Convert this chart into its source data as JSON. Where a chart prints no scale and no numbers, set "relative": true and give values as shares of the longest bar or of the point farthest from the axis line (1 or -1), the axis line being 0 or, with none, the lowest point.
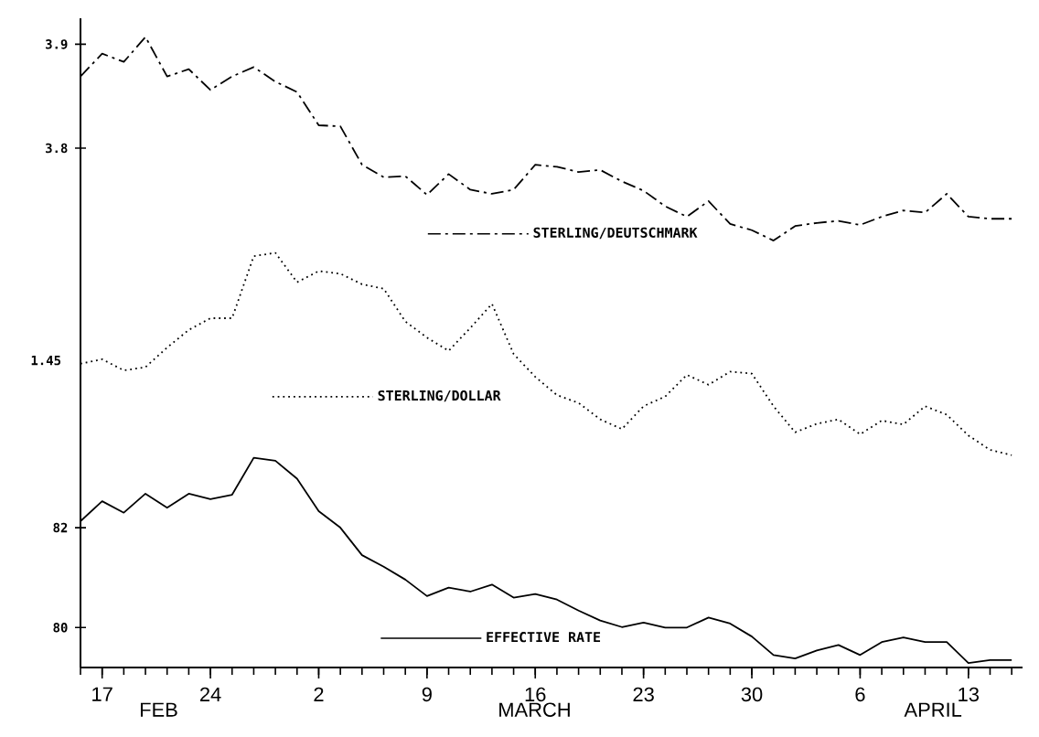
{
  "chart_data": [
    {
      "type": "line",
      "categories": [
        null,
        "17",
        null,
        null,
        null,
        null,
        "24",
        null,
        null,
        null,
        null,
        "2",
        null,
        null,
        null,
        null,
        "9",
        null,
        null,
        null,
        null,
        "16",
        null,
        null,
        null,
        null,
        "23",
        null,
        null,
        null,
        null,
        "30",
        null,
        null,
        null,
        null,
        "6",
        null,
        null,
        null,
        null,
        "13",
        null,
        null
      ],
      "ylim": [
        3.3,
        3.925
      ],
      "yticks": [
        3.8,
        3.9
      ],
      "tick_labels": "y",
      "legend": "center",
      "line_style": "dashdot",
      "series": [
        {
          "name": "STERLING/DEUTSCHMARK",
          "color": "#000000",
          "values": [
            3.869,
            3.891,
            3.883,
            3.907,
            3.869,
            3.876,
            3.856,
            3.869,
            3.878,
            3.864,
            3.854,
            3.822,
            3.821,
            3.784,
            3.772,
            3.773,
            3.755,
            3.775,
            3.76,
            3.756,
            3.76,
            3.784,
            3.782,
            3.777,
            3.779,
            3.768,
            3.759,
            3.744,
            3.734,
            3.749,
            3.727,
            3.721,
            3.711,
            3.725,
            3.728,
            3.73,
            3.726,
            3.734,
            3.74,
            3.738,
            3.756,
            3.734,
            3.732,
            3.732
          ]
        }
      ]
    },
    {
      "type": "line",
      "categories": [
        null,
        "17",
        null,
        null,
        null,
        null,
        "24",
        null,
        null,
        null,
        null,
        "2",
        null,
        null,
        null,
        null,
        "9",
        null,
        null,
        null,
        null,
        "16",
        null,
        null,
        null,
        null,
        "23",
        null,
        null,
        null,
        null,
        "30",
        null,
        null,
        null,
        null,
        "6",
        null,
        null,
        null,
        null,
        "13",
        null,
        null
      ],
      "relative": true,
      "tick_labels": false,
      "legend": "center",
      "line_style": "dotted",
      "annotations": [
        "1.45"
      ],
      "series": [
        {
          "name": "STERLING/DOLLAR",
          "color": "#000000",
          "values": [
            0.452,
            0.474,
            0.419,
            0.435,
            0.532,
            0.619,
            0.677,
            0.677,
            0.984,
            1,
            0.855,
            0.91,
            0.897,
            0.845,
            0.823,
            0.661,
            0.581,
            0.516,
            0.629,
            0.748,
            0.5,
            0.387,
            0.297,
            0.258,
            0.177,
            0.129,
            0.242,
            0.29,
            0.397,
            0.348,
            0.413,
            0.403,
            0.242,
            0.113,
            0.155,
            0.177,
            0.103,
            0.171,
            0.152,
            0.242,
            0.2,
            0.097,
            0.026,
            0
          ]
        }
      ]
    },
    {
      "type": "line",
      "categories": [
        null,
        "17",
        null,
        null,
        null,
        null,
        "24",
        null,
        null,
        null,
        null,
        "2",
        null,
        null,
        null,
        null,
        "9",
        null,
        null,
        null,
        null,
        "16",
        null,
        null,
        null,
        null,
        "23",
        null,
        null,
        null,
        null,
        "30",
        null,
        null,
        null,
        null,
        "6",
        null,
        null,
        null,
        null,
        "13",
        null,
        null
      ],
      "ylim": [
        79.2,
        92.2
      ],
      "yticks": [
        80,
        82
      ],
      "legend": "center",
      "line_style": "solid",
      "annotations": [
        "FEB",
        "MARCH",
        "APRIL"
      ],
      "series": [
        {
          "name": "EFFECTIVE RATE",
          "color": "#000000",
          "values": [
            82.13,
            82.53,
            82.3,
            82.68,
            82.4,
            82.68,
            82.57,
            82.66,
            83.4,
            83.34,
            82.98,
            82.33,
            82.0,
            81.45,
            81.22,
            80.96,
            80.63,
            80.8,
            80.72,
            80.86,
            80.6,
            80.67,
            80.56,
            80.34,
            80.14,
            80.01,
            80.1,
            80.0,
            80.0,
            80.2,
            80.08,
            79.82,
            79.45,
            79.38,
            79.54,
            79.65,
            79.45,
            79.71,
            79.8,
            79.71,
            79.71,
            79.29,
            79.35,
            79.35
          ]
        }
      ]
    }
  ]
}
